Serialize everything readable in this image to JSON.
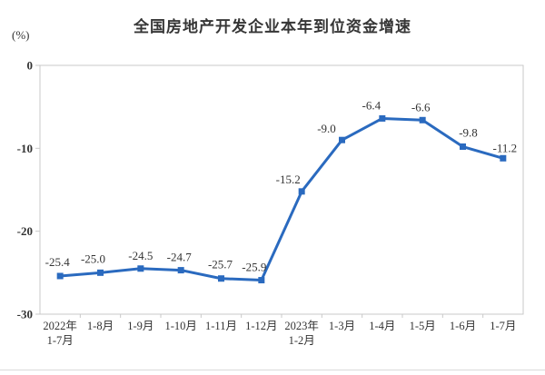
{
  "page": {
    "background": "#ffffff",
    "divider_color": "#dadada"
  },
  "chart_data": {
    "type": "line",
    "title": "全国房地产开发企业本年到位资金增速",
    "unit_label": "(%)",
    "categories": [
      [
        "2022年",
        "1-7月"
      ],
      [
        "1-8月"
      ],
      [
        "1-9月"
      ],
      [
        "1-10月"
      ],
      [
        "1-11月"
      ],
      [
        "1-12月"
      ],
      [
        "2023年",
        "1-2月"
      ],
      [
        "1-3月"
      ],
      [
        "1-4月"
      ],
      [
        "1-5月"
      ],
      [
        "1-6月"
      ],
      [
        "1-7月"
      ]
    ],
    "values": [
      -25.4,
      -25.0,
      -24.5,
      -24.7,
      -25.7,
      -25.9,
      -15.2,
      -9.0,
      -6.4,
      -6.6,
      -9.8,
      -11.2
    ],
    "ylim": [
      -30,
      0
    ],
    "yticks": [
      0,
      -10,
      -20,
      -30
    ],
    "grid": false,
    "legend_position": "none",
    "line_color": "#2a6abf",
    "marker": "square",
    "axis_color": "#c9c9c9",
    "text_color": "#333333",
    "title_color": "#363636"
  }
}
